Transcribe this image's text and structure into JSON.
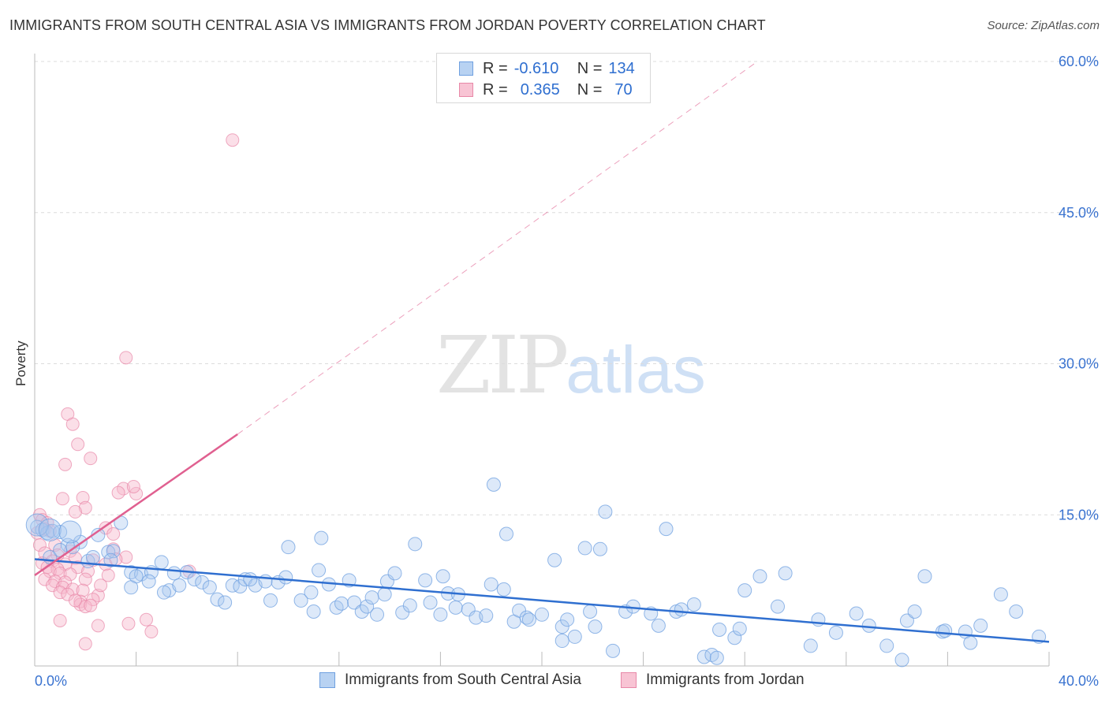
{
  "header": {
    "title": "IMMIGRANTS FROM SOUTH CENTRAL ASIA VS IMMIGRANTS FROM JORDAN POVERTY CORRELATION CHART",
    "source": "Source: ZipAtlas.com"
  },
  "watermark": {
    "zip": "ZIP",
    "atlas": "atlas"
  },
  "legend": {
    "r_label": "R =",
    "n_label": "N =",
    "series1": {
      "r": "-0.610",
      "n": "134"
    },
    "series2": {
      "r": "0.365",
      "n": "70"
    }
  },
  "colors": {
    "blue": "#6fa0e0",
    "blue_fill": "#a9c8f0",
    "blue_line": "#2f6fd0",
    "pink": "#e888a8",
    "pink_fill": "#f6b8cc",
    "pink_line": "#e06090",
    "tick_text": "#3a73d0"
  },
  "chart_data": {
    "type": "scatter",
    "title": "IMMIGRANTS FROM SOUTH CENTRAL ASIA VS IMMIGRANTS FROM JORDAN POVERTY CORRELATION CHART",
    "xlabel": "",
    "ylabel": "Poverty",
    "xlim": [
      0,
      40
    ],
    "ylim": [
      0,
      60
    ],
    "x_ticks": [
      "0.0%",
      "40.0%"
    ],
    "y_ticks": [
      {
        "value": 15,
        "label": "15.0%"
      },
      {
        "value": 30,
        "label": "30.0%"
      },
      {
        "value": 45,
        "label": "45.0%"
      },
      {
        "value": 60,
        "label": "60.0%"
      }
    ],
    "grid": true,
    "legend_position": "top-center",
    "series": [
      {
        "name": "Immigrants from South Central Asia",
        "color": "#6fa0e0",
        "trend": {
          "x": [
            0,
            40
          ],
          "y": [
            10.6,
            2.4
          ]
        },
        "points": [
          [
            0.1,
            13.8
          ],
          [
            0.3,
            13.5
          ],
          [
            0.5,
            13.2
          ],
          [
            0.7,
            13.4
          ],
          [
            1.0,
            13.3
          ],
          [
            1.3,
            12.0
          ],
          [
            1.8,
            12.3
          ],
          [
            2.5,
            13.0
          ],
          [
            2.9,
            11.3
          ],
          [
            3.4,
            14.2
          ],
          [
            0.6,
            10.8
          ],
          [
            1.0,
            11.5
          ],
          [
            1.5,
            11.8
          ],
          [
            2.1,
            10.4
          ],
          [
            3.1,
            11.4
          ],
          [
            3.0,
            10.5
          ],
          [
            2.3,
            10.8
          ],
          [
            3.8,
            9.3
          ],
          [
            4.2,
            9.1
          ],
          [
            4.6,
            9.3
          ],
          [
            4.0,
            8.9
          ],
          [
            4.5,
            8.4
          ],
          [
            3.8,
            7.8
          ],
          [
            5.0,
            10.3
          ],
          [
            5.5,
            9.2
          ],
          [
            5.3,
            7.5
          ],
          [
            5.1,
            7.3
          ],
          [
            6.0,
            9.3
          ],
          [
            5.7,
            8.0
          ],
          [
            6.3,
            8.6
          ],
          [
            6.6,
            8.3
          ],
          [
            6.9,
            7.8
          ],
          [
            7.2,
            6.6
          ],
          [
            7.5,
            6.3
          ],
          [
            7.8,
            8.0
          ],
          [
            8.1,
            7.9
          ],
          [
            8.3,
            8.6
          ],
          [
            8.7,
            8.0
          ],
          [
            8.5,
            8.6
          ],
          [
            9.1,
            8.4
          ],
          [
            9.3,
            6.5
          ],
          [
            9.6,
            8.3
          ],
          [
            9.9,
            8.8
          ],
          [
            10.0,
            11.8
          ],
          [
            10.5,
            6.5
          ],
          [
            10.9,
            7.3
          ],
          [
            11.2,
            9.5
          ],
          [
            11.0,
            5.4
          ],
          [
            11.3,
            12.7
          ],
          [
            11.6,
            8.1
          ],
          [
            11.9,
            5.8
          ],
          [
            12.1,
            6.2
          ],
          [
            12.6,
            6.3
          ],
          [
            12.4,
            8.5
          ],
          [
            12.9,
            5.4
          ],
          [
            13.1,
            5.9
          ],
          [
            13.3,
            6.8
          ],
          [
            13.8,
            7.1
          ],
          [
            13.5,
            5.1
          ],
          [
            13.9,
            8.4
          ],
          [
            14.2,
            9.2
          ],
          [
            14.5,
            5.3
          ],
          [
            14.8,
            6.0
          ],
          [
            15.0,
            12.1
          ],
          [
            15.4,
            8.5
          ],
          [
            15.6,
            6.3
          ],
          [
            16.0,
            5.1
          ],
          [
            16.1,
            8.9
          ],
          [
            16.3,
            7.2
          ],
          [
            16.7,
            7.1
          ],
          [
            16.6,
            5.8
          ],
          [
            17.1,
            5.6
          ],
          [
            17.4,
            4.8
          ],
          [
            17.8,
            5.0
          ],
          [
            18.0,
            8.1
          ],
          [
            18.1,
            18.0
          ],
          [
            18.5,
            7.6
          ],
          [
            18.6,
            13.1
          ],
          [
            18.9,
            4.4
          ],
          [
            19.1,
            5.5
          ],
          [
            19.4,
            4.8
          ],
          [
            19.5,
            4.6
          ],
          [
            20.0,
            5.1
          ],
          [
            20.5,
            10.5
          ],
          [
            20.8,
            2.5
          ],
          [
            20.8,
            3.9
          ],
          [
            21.0,
            4.6
          ],
          [
            21.3,
            2.9
          ],
          [
            21.9,
            5.4
          ],
          [
            21.7,
            11.7
          ],
          [
            22.1,
            3.9
          ],
          [
            22.3,
            11.6
          ],
          [
            22.5,
            15.3
          ],
          [
            22.8,
            1.5
          ],
          [
            23.3,
            5.4
          ],
          [
            23.6,
            5.9
          ],
          [
            24.3,
            5.2
          ],
          [
            24.6,
            4.0
          ],
          [
            24.9,
            13.6
          ],
          [
            25.3,
            5.4
          ],
          [
            25.5,
            5.6
          ],
          [
            26.0,
            6.1
          ],
          [
            26.4,
            0.9
          ],
          [
            26.7,
            1.1
          ],
          [
            26.9,
            0.8
          ],
          [
            27.0,
            3.6
          ],
          [
            27.6,
            2.8
          ],
          [
            27.8,
            3.7
          ],
          [
            28.0,
            7.5
          ],
          [
            29.3,
            5.9
          ],
          [
            29.6,
            9.2
          ],
          [
            30.6,
            2.0
          ],
          [
            30.9,
            4.6
          ],
          [
            31.6,
            3.3
          ],
          [
            32.4,
            5.2
          ],
          [
            32.9,
            4.0
          ],
          [
            33.6,
            2.0
          ],
          [
            34.2,
            0.6
          ],
          [
            34.4,
            4.5
          ],
          [
            34.7,
            5.4
          ],
          [
            35.1,
            8.9
          ],
          [
            35.8,
            3.4
          ],
          [
            35.9,
            3.5
          ],
          [
            36.7,
            3.4
          ],
          [
            36.9,
            2.3
          ],
          [
            37.3,
            4.0
          ],
          [
            38.1,
            7.1
          ],
          [
            38.7,
            5.4
          ],
          [
            39.6,
            2.9
          ],
          [
            28.6,
            8.9
          ]
        ],
        "large_points": [
          [
            0.1,
            14.0
          ],
          [
            0.6,
            13.5
          ],
          [
            1.4,
            13.3
          ]
        ]
      },
      {
        "name": "Immigrants from Jordan",
        "color": "#e888a8",
        "trend": {
          "x": [
            0,
            8.0
          ],
          "y": [
            9.0,
            23.0
          ],
          "dashed_to": {
            "x": 28.5,
            "y": 60.0
          }
        },
        "points": [
          [
            7.8,
            52.2
          ],
          [
            3.6,
            30.6
          ],
          [
            1.3,
            25.0
          ],
          [
            1.5,
            24.0
          ],
          [
            1.7,
            22.0
          ],
          [
            2.2,
            20.6
          ],
          [
            1.2,
            20.0
          ],
          [
            3.5,
            17.6
          ],
          [
            3.3,
            17.2
          ],
          [
            4.0,
            17.1
          ],
          [
            3.9,
            17.8
          ],
          [
            1.1,
            16.6
          ],
          [
            1.9,
            16.7
          ],
          [
            2.0,
            15.7
          ],
          [
            1.6,
            15.3
          ],
          [
            0.2,
            15.0
          ],
          [
            0.3,
            14.5
          ],
          [
            0.5,
            14.2
          ],
          [
            0.4,
            13.6
          ],
          [
            2.8,
            13.7
          ],
          [
            0.1,
            13.2
          ],
          [
            0.6,
            13.4
          ],
          [
            3.1,
            13.1
          ],
          [
            0.2,
            12.0
          ],
          [
            0.8,
            12.0
          ],
          [
            1.4,
            11.4
          ],
          [
            3.1,
            11.6
          ],
          [
            0.4,
            11.2
          ],
          [
            0.9,
            11.0
          ],
          [
            1.6,
            10.7
          ],
          [
            2.3,
            10.5
          ],
          [
            3.6,
            10.8
          ],
          [
            0.3,
            10.2
          ],
          [
            0.7,
            10.4
          ],
          [
            1.2,
            10.1
          ],
          [
            0.5,
            9.8
          ],
          [
            0.9,
            9.6
          ],
          [
            1.7,
            9.8
          ],
          [
            2.8,
            10.1
          ],
          [
            3.2,
            10.6
          ],
          [
            6.1,
            9.4
          ],
          [
            0.6,
            9.4
          ],
          [
            1.0,
            9.2
          ],
          [
            1.4,
            9.1
          ],
          [
            2.1,
            9.4
          ],
          [
            0.4,
            8.6
          ],
          [
            0.8,
            8.4
          ],
          [
            1.2,
            8.3
          ],
          [
            2.0,
            8.6
          ],
          [
            0.7,
            8.0
          ],
          [
            1.1,
            7.8
          ],
          [
            1.5,
            7.6
          ],
          [
            1.9,
            7.5
          ],
          [
            2.5,
            7.0
          ],
          [
            1.0,
            7.3
          ],
          [
            1.3,
            7.1
          ],
          [
            1.8,
            6.4
          ],
          [
            2.3,
            6.6
          ],
          [
            1.8,
            6.1
          ],
          [
            2.0,
            5.9
          ],
          [
            2.2,
            6.0
          ],
          [
            1.0,
            4.5
          ],
          [
            2.5,
            4.0
          ],
          [
            3.7,
            4.2
          ],
          [
            4.4,
            4.6
          ],
          [
            4.6,
            3.4
          ],
          [
            2.0,
            2.2
          ],
          [
            1.6,
            6.5
          ],
          [
            2.6,
            8.0
          ],
          [
            2.9,
            9.0
          ]
        ]
      }
    ]
  },
  "bottom_legend": {
    "item1": "Immigrants from South Central Asia",
    "item2": "Immigrants from Jordan"
  }
}
